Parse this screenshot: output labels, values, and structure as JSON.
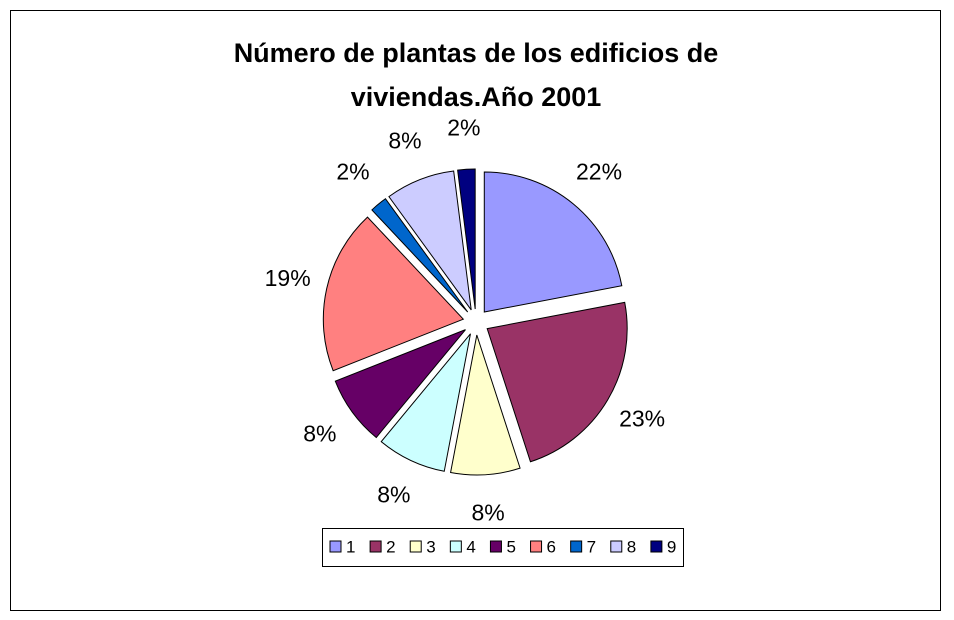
{
  "chart_data": {
    "type": "pie",
    "title": [
      "Número de plantas de los edificios de",
      "viviendas.Año 2001"
    ],
    "categories": [
      "1",
      "2",
      "3",
      "4",
      "5",
      "6",
      "7",
      "8",
      "9"
    ],
    "values": [
      22,
      23,
      8,
      8,
      8,
      19,
      2,
      8,
      2
    ],
    "value_labels": [
      "22%",
      "23%",
      "8%",
      "8%",
      "8%",
      "19%",
      "2%",
      "8%",
      "2%"
    ],
    "colors": [
      "#9999ff",
      "#993366",
      "#ffffcc",
      "#ccffff",
      "#660066",
      "#ff8080",
      "#0066cc",
      "#ccccff",
      "#000080"
    ],
    "legend": "bottom"
  }
}
